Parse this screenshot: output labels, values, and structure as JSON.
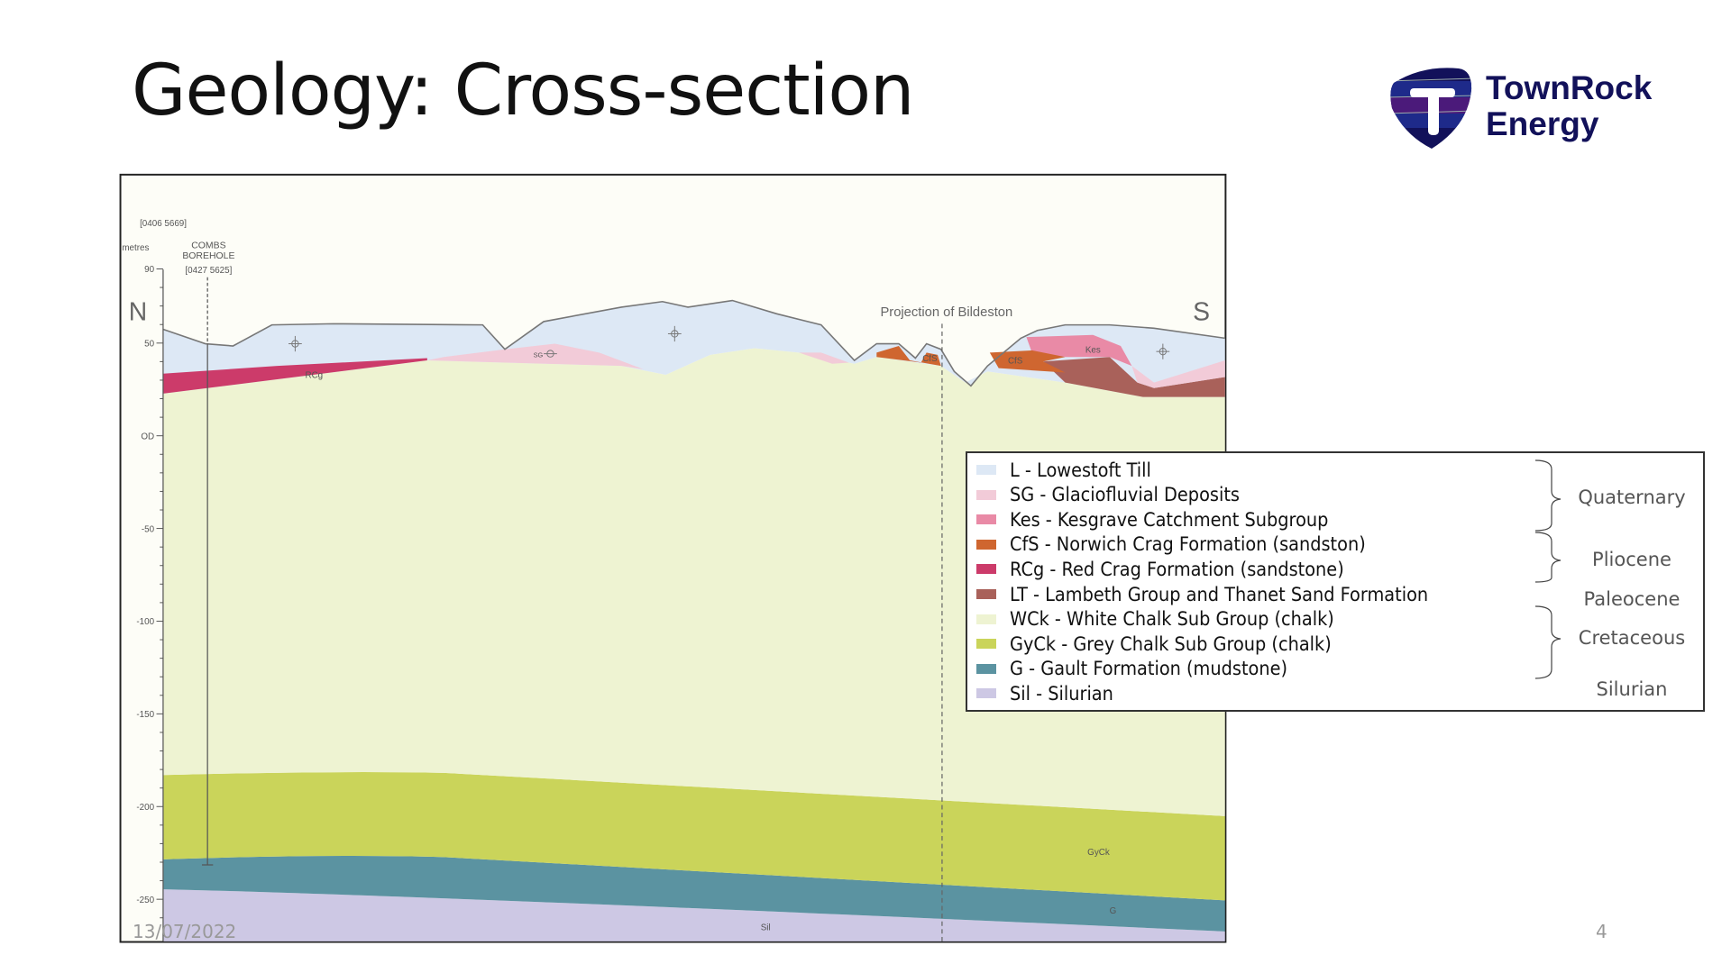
{
  "slide": {
    "title": "Geology: Cross-section",
    "date": "13/07/2022",
    "page_number": "4"
  },
  "logo": {
    "line1": "TownRock",
    "line2": "Energy",
    "colors": [
      "#12115a",
      "#1e2a8a",
      "#4b1a7a"
    ]
  },
  "section": {
    "grid_ref_start": "[0406 5669]",
    "axis_unit": "metres",
    "borehole_name_1": "COMBS",
    "borehole_name_2": "BOREHOLE",
    "borehole_ref": "[0427 5625]",
    "north": "N",
    "south": "S",
    "projection_label": "Projection of Bildeston",
    "axis_ticks": [
      "90",
      "50",
      "OD",
      "-50",
      "-100",
      "-150",
      "-200",
      "-250"
    ],
    "unit_labels": {
      "rcg": "RCg",
      "sg": "SG",
      "kes": "Kes",
      "cfs_right": "CfS",
      "cfs_mid": "CfS",
      "gyck": "GyCk",
      "g": "G",
      "sil": "Sil"
    }
  },
  "legend": {
    "items": [
      {
        "label": "L - Lowestoft Till",
        "color": "#dde8f5"
      },
      {
        "label": "SG - Glaciofluvial Deposits",
        "color": "#f2cbd8"
      },
      {
        "label": "Kes - Kesgrave Catchment Subgroup",
        "color": "#e98aa6"
      },
      {
        "label": "CfS - Norwich Crag Formation (sandston)",
        "color": "#cf6630"
      },
      {
        "label": "RCg - Red Crag Formation (sandstone)",
        "color": "#cc3b6a"
      },
      {
        "label": "LT - Lambeth Group and Thanet Sand Formation",
        "color": "#a9615a"
      },
      {
        "label": "WCk - White Chalk Sub Group (chalk)",
        "color": "#eef3d2"
      },
      {
        "label": "GyCk - Grey Chalk Sub Group (chalk)",
        "color": "#cad45a"
      },
      {
        "label": "G - Gault Formation (mudstone)",
        "color": "#5b93a1"
      },
      {
        "label": "Sil - Silurian",
        "color": "#cdc8e4"
      }
    ],
    "groups": [
      "Quaternary",
      "Pliocene",
      "Paleocene",
      "Cretaceous",
      "Silurian"
    ]
  }
}
